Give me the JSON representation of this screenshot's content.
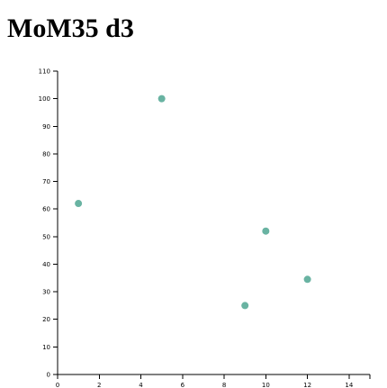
{
  "page": {
    "title": "MoM35 d3"
  },
  "colors": {
    "point": "#69b3a2",
    "axis": "#000000"
  },
  "chart_data": {
    "type": "scatter",
    "title": "",
    "xlabel": "",
    "ylabel": "",
    "xlim": [
      0,
      15
    ],
    "ylim": [
      0,
      110
    ],
    "x_ticks": [
      0,
      2,
      4,
      6,
      8,
      10,
      12,
      14
    ],
    "y_ticks": [
      0,
      10,
      20,
      30,
      40,
      50,
      60,
      70,
      80,
      90,
      100,
      110
    ],
    "grid": false,
    "legend": "none",
    "series": [
      {
        "points": [
          {
            "x": 1,
            "y": 62
          },
          {
            "x": 5,
            "y": 100
          },
          {
            "x": 9,
            "y": 25
          },
          {
            "x": 10,
            "y": 52
          },
          {
            "x": 12,
            "y": 34.5
          }
        ]
      }
    ]
  }
}
